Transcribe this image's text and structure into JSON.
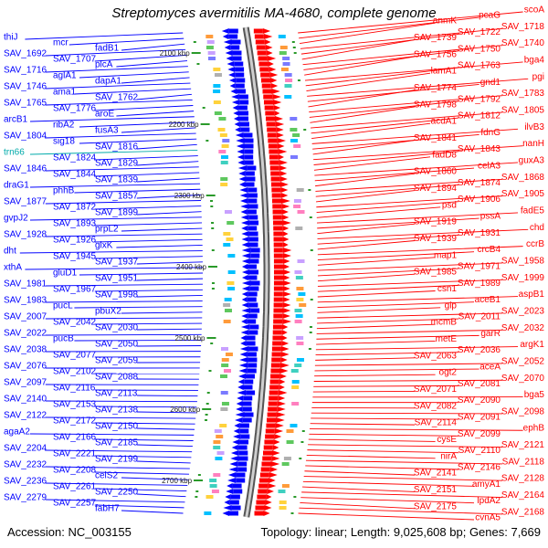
{
  "title": "Streptomyces avermitilis MA-4680, complete genome",
  "accession": "Accession: NC_003155",
  "summary": "Topology: linear; Length: 9,025,608 bp; Genes: 7,669",
  "colors": {
    "forward_strand": "#ff0000",
    "reverse_strand": "#0000ff",
    "rrna_label": "#00aaaa",
    "backbone": "#888888"
  },
  "kbp_ticks": [
    "2100 kbp",
    "2200 kbp",
    "2300 kbp",
    "2400 kbp",
    "2500 kbp",
    "2600 kbp",
    "2700 kbp"
  ],
  "left_labels": [
    "thiJ",
    "mcr",
    "fadB1",
    "SAV_1692",
    "SAV_1707",
    "plcA",
    "SAV_1716",
    "aglA1",
    "dapA1",
    "SAV_1746",
    "ama1",
    "SAV_1762",
    "SAV_1765",
    "SAV_1776",
    "aroE",
    "arcB1",
    "ribA2",
    "fusA3",
    "SAV_1804",
    "sig18",
    "SAV_1816",
    "trn66",
    "SAV_1824",
    "SAV_1829",
    "SAV_1846",
    "SAV_1844",
    "SAV_1839",
    "draG1",
    "phhB",
    "SAV_1857",
    "SAV_1877",
    "SAV_1872",
    "SAV_1899",
    "gvpJ2",
    "SAV_1893",
    "prpL2",
    "SAV_1928",
    "SAV_1926",
    "glxK",
    "dht",
    "SAV_1945",
    "SAV_1937",
    "xthA",
    "gluD1",
    "SAV_1951",
    "SAV_1981",
    "SAV_1967",
    "SAV_1998",
    "SAV_1983",
    "pucL",
    "pbuX2",
    "SAV_2007",
    "SAV_2042",
    "SAV_2030",
    "SAV_2022",
    "pucB",
    "SAV_2050",
    "SAV_2038",
    "SAV_2077",
    "SAV_2059",
    "SAV_2076",
    "SAV_2102",
    "SAV_2088",
    "SAV_2097",
    "SAV_2116",
    "SAV_2113",
    "SAV_2140",
    "SAV_2153",
    "SAV_2138",
    "SAV_2122",
    "SAV_2172",
    "SAV_2150",
    "agaA2",
    "SAV_2166",
    "SAV_2185",
    "SAV_2204",
    "SAV_2221",
    "SAV_2199",
    "SAV_2232",
    "SAV_2208",
    "celS2",
    "SAV_2236",
    "SAV_2261",
    "SAV_2250",
    "SAV_2279",
    "SAV_2257",
    "fabH7"
  ],
  "right_labels": [
    "scoA",
    "pcaG",
    "anmK",
    "SAV_1718",
    "SAV_1722",
    "SAV_1739",
    "SAV_1740",
    "SAV_1750",
    "SAV_1756",
    "bga4",
    "SAV_1763",
    "lamA1",
    "pgi",
    "gnd1",
    "SAV_1774",
    "SAV_1783",
    "SAV_1792",
    "SAV_1798",
    "SAV_1805",
    "SAV_1812",
    "acdA1",
    "ilvB3",
    "fdnG",
    "SAV_1841",
    "nanH",
    "SAV_1843",
    "fadD8",
    "guxA3",
    "celA3",
    "SAV_1860",
    "SAV_1868",
    "SAV_1874",
    "SAV_1894",
    "SAV_1905",
    "SAV_1906",
    "psd",
    "fadE5",
    "pssA",
    "SAV_1919",
    "chd",
    "SAV_1931",
    "SAV_1939",
    "ccrB",
    "crcB4",
    "map1",
    "SAV_1958",
    "SAV_1971",
    "SAV_1985",
    "SAV_1999",
    "SAV_1989",
    "csn1",
    "aspB1",
    "aceB1",
    "gip",
    "SAV_2023",
    "SAV_2011",
    "mcmB",
    "SAV_2032",
    "garR",
    "metE",
    "argK1",
    "SAV_2036",
    "SAV_2063",
    "SAV_2052",
    "aceA",
    "ogt2",
    "SAV_2070",
    "SAV_2081",
    "SAV_2071",
    "bga5",
    "SAV_2090",
    "SAV_2082",
    "SAV_2098",
    "SAV_2091",
    "SAV_2114",
    "ephB",
    "SAV_2099",
    "cysE",
    "SAV_2121",
    "SAV_2110",
    "nirA",
    "SAV_2118",
    "SAV_2146",
    "SAV_2141",
    "SAV_2128",
    "amyA1",
    "SAV_2151",
    "SAV_2164",
    "lpdA2",
    "SAV_2175",
    "SAV_2168",
    "cvnA5"
  ]
}
